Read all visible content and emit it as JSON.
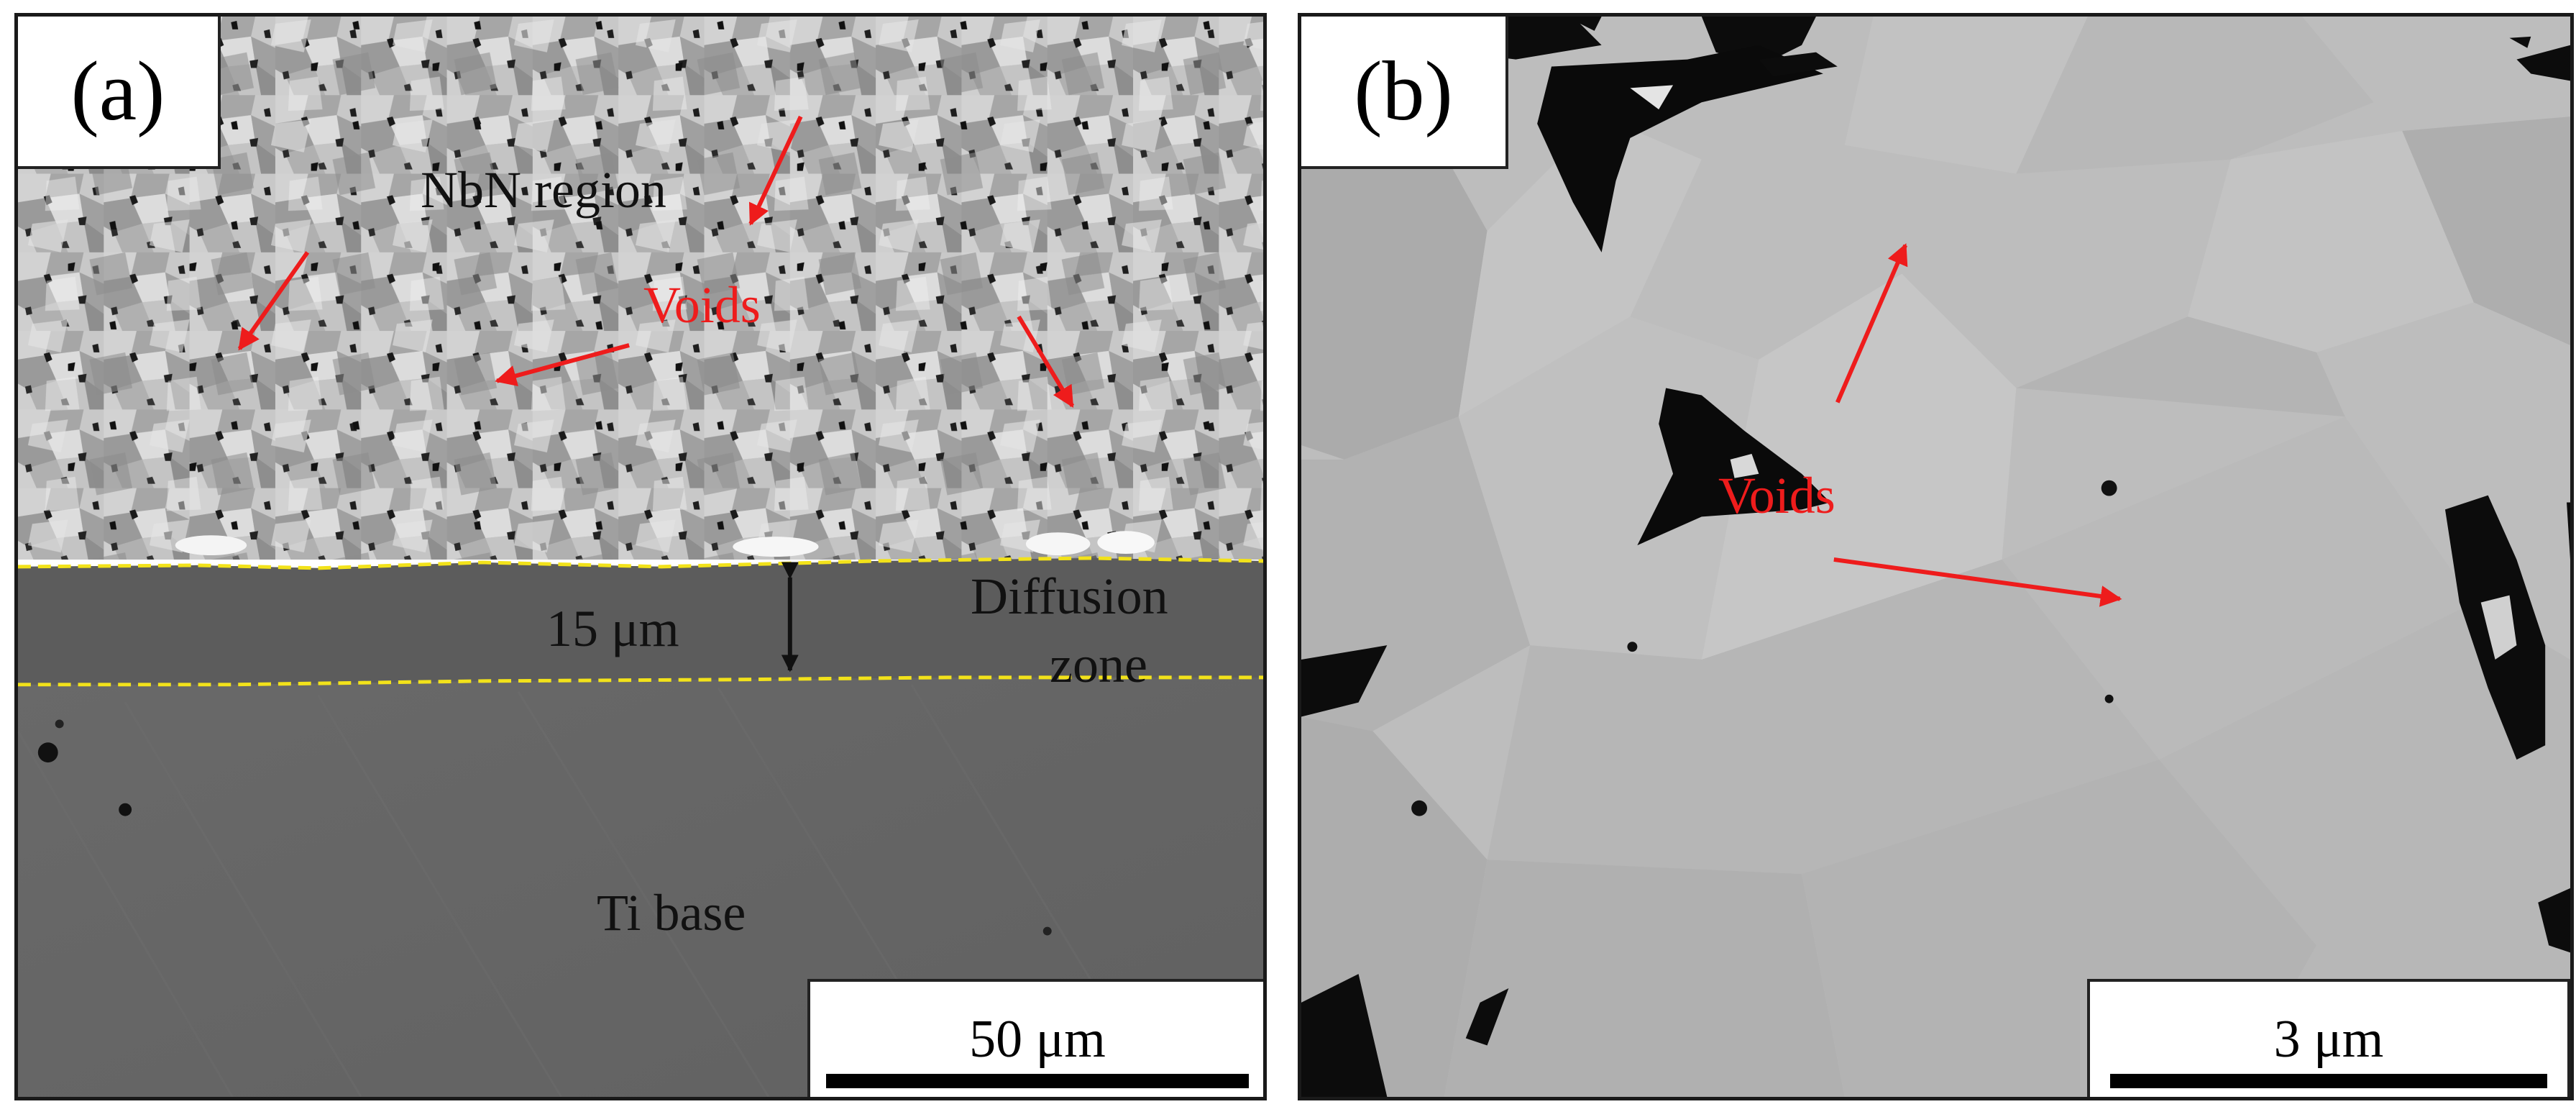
{
  "panels": {
    "a": {
      "label": "(a)",
      "region_label": "NbN region",
      "voids_label": "Voids",
      "thickness_label": "15 μm",
      "diffusion_label_line1": "Diffusion",
      "diffusion_label_line2": "zone",
      "base_label": "Ti base",
      "scale_label": "50 μm"
    },
    "b": {
      "label": "(b)",
      "voids_label": "Voids",
      "scale_label": "3 μm"
    }
  },
  "colors": {
    "annotation_red": "#ee1c1c",
    "boundary_yellow": "#f2e21a",
    "nbn_gray": "#b4b4b4",
    "diffusion_gray": "#5c5c5c",
    "ti_gray": "#666666",
    "grain_gray": "#bdbdbd"
  }
}
